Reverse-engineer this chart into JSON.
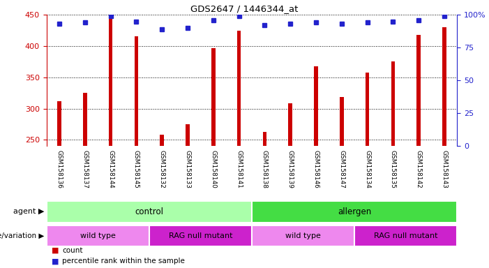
{
  "title": "GDS2647 / 1446344_at",
  "samples": [
    "GSM158136",
    "GSM158137",
    "GSM158144",
    "GSM158145",
    "GSM158132",
    "GSM158133",
    "GSM158140",
    "GSM158141",
    "GSM158138",
    "GSM158139",
    "GSM158146",
    "GSM158147",
    "GSM158134",
    "GSM158135",
    "GSM158142",
    "GSM158143"
  ],
  "counts": [
    312,
    325,
    443,
    415,
    258,
    275,
    397,
    425,
    263,
    308,
    367,
    318,
    357,
    375,
    418,
    430
  ],
  "percentile_ranks": [
    93,
    94,
    99,
    95,
    89,
    90,
    96,
    99,
    92,
    93,
    94,
    93,
    94,
    95,
    96,
    99
  ],
  "ylim_left": [
    240,
    450
  ],
  "ylim_right": [
    0,
    100
  ],
  "yticks_left": [
    250,
    300,
    350,
    400,
    450
  ],
  "yticks_right": [
    0,
    25,
    50,
    75,
    100
  ],
  "bar_color": "#cc0000",
  "dot_color": "#2222cc",
  "agent_groups": [
    {
      "label": "control",
      "start": 0,
      "end": 8,
      "color": "#aaffaa"
    },
    {
      "label": "allergen",
      "start": 8,
      "end": 16,
      "color": "#44dd44"
    }
  ],
  "genotype_groups": [
    {
      "label": "wild type",
      "start": 0,
      "end": 4,
      "color": "#ee88ee"
    },
    {
      "label": "RAG null mutant",
      "start": 4,
      "end": 8,
      "color": "#cc22cc"
    },
    {
      "label": "wild type",
      "start": 8,
      "end": 12,
      "color": "#ee88ee"
    },
    {
      "label": "RAG null mutant",
      "start": 12,
      "end": 16,
      "color": "#cc22cc"
    }
  ],
  "agent_label": "agent",
  "genotype_label": "genotype/variation",
  "legend_count_color": "#cc0000",
  "legend_dot_color": "#2222cc",
  "background_color": "#ffffff",
  "sample_bg_color": "#cccccc",
  "bar_width": 0.15
}
